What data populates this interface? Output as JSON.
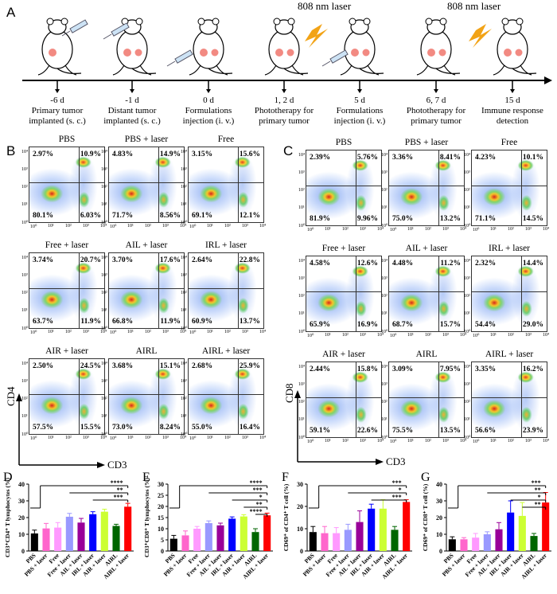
{
  "panelA": {
    "letter": "A",
    "laser_label": "808 nm laser",
    "timeline": [
      {
        "day": "-6 d",
        "l1": "Primary tumor",
        "l2": "implanted (s. c.)"
      },
      {
        "day": "-1 d",
        "l1": "Distant tumor",
        "l2": "implanted (s. c.)"
      },
      {
        "day": "0 d",
        "l1": "Formulations",
        "l2": "injection (i. v.)"
      },
      {
        "day": "1, 2 d",
        "l1": "Phototherapy for",
        "l2": "primary tumor"
      },
      {
        "day": "5 d",
        "l1": "Formulations",
        "l2": "injection (i. v.)"
      },
      {
        "day": "6, 7 d",
        "l1": "Phototherapy for",
        "l2": "primary tumor"
      },
      {
        "day": "15 d",
        "l1": "Immune response",
        "l2": "detection"
      }
    ]
  },
  "panelB": {
    "letter": "B",
    "x_axis": "CD3",
    "y_axis": "CD4",
    "plots": [
      {
        "title": "PBS",
        "ul": "2.97%",
        "ur": "10.9%",
        "ll": "80.1%",
        "lr": "6.03%"
      },
      {
        "title": "PBS + laser",
        "ul": "4.83%",
        "ur": "14.9%",
        "ll": "71.7%",
        "lr": "8.56%"
      },
      {
        "title": "Free",
        "ul": "3.15%",
        "ur": "15.6%",
        "ll": "69.1%",
        "lr": "12.1%"
      },
      {
        "title": "Free + laser",
        "ul": "3.74%",
        "ur": "20.7%",
        "ll": "63.7%",
        "lr": "11.9%"
      },
      {
        "title": "AIL + laser",
        "ul": "3.70%",
        "ur": "17.6%",
        "ll": "66.8%",
        "lr": "11.9%"
      },
      {
        "title": "IRL + laser",
        "ul": "2.64%",
        "ur": "22.8%",
        "ll": "60.9%",
        "lr": "13.7%"
      },
      {
        "title": "AIR + laser",
        "ul": "2.50%",
        "ur": "24.5%",
        "ll": "57.5%",
        "lr": "15.5%"
      },
      {
        "title": "AIRL",
        "ul": "3.68%",
        "ur": "15.1%",
        "ll": "73.0%",
        "lr": "8.24%"
      },
      {
        "title": "AIRL + laser",
        "ul": "2.68%",
        "ur": "25.9%",
        "ll": "55.0%",
        "lr": "16.4%"
      }
    ]
  },
  "panelC": {
    "letter": "C",
    "x_axis": "CD3",
    "y_axis": "CD8",
    "plots": [
      {
        "title": "PBS",
        "ul": "2.39%",
        "ur": "5.76%",
        "ll": "81.9%",
        "lr": "9.96%"
      },
      {
        "title": "PBS + laser",
        "ul": "3.36%",
        "ur": "8.41%",
        "ll": "75.0%",
        "lr": "13.2%"
      },
      {
        "title": "Free",
        "ul": "4.23%",
        "ur": "10.1%",
        "ll": "71.1%",
        "lr": "14.5%"
      },
      {
        "title": "Free + laser",
        "ul": "4.58%",
        "ur": "12.6%",
        "ll": "65.9%",
        "lr": "16.9%"
      },
      {
        "title": "AIL + laser",
        "ul": "4.48%",
        "ur": "11.2%",
        "ll": "68.7%",
        "lr": "15.7%"
      },
      {
        "title": "IRL + laser",
        "ul": "2.32%",
        "ur": "14.4%",
        "ll": "54.4%",
        "lr": "29.0%"
      },
      {
        "title": "AIR + laser",
        "ul": "2.44%",
        "ur": "15.8%",
        "ll": "59.1%",
        "lr": "22.6%"
      },
      {
        "title": "AIRL",
        "ul": "3.09%",
        "ur": "7.95%",
        "ll": "75.5%",
        "lr": "13.5%"
      },
      {
        "title": "AIRL + laser",
        "ul": "3.35%",
        "ur": "16.2%",
        "ll": "56.6%",
        "lr": "23.9%"
      }
    ]
  },
  "tick_labels": [
    "10⁰",
    "10¹",
    "10²",
    "10³",
    "10⁴"
  ],
  "chart_data": [
    {
      "id": "D",
      "type": "bar",
      "title": "",
      "ylabel": "CD3⁺CD4⁺ T lymphocytes (%)",
      "ylim": [
        0,
        40
      ],
      "yticks": [
        0,
        10,
        20,
        30,
        40
      ],
      "categories": [
        "PBS",
        "PBS + laser",
        "Free",
        "Free + laser",
        "AIL + laser",
        "IRL + laser",
        "AIR + laser",
        "AIRL",
        "AIRL + laser"
      ],
      "values": [
        10.5,
        13.5,
        14,
        20.5,
        17,
        22,
        23.5,
        15,
        26.5
      ],
      "errors": [
        2,
        3,
        3,
        2,
        2.5,
        1.5,
        1.5,
        1,
        2
      ],
      "colors": [
        "#000000",
        "#ff66cc",
        "#ff99ff",
        "#9999ff",
        "#990099",
        "#0000ff",
        "#ccff33",
        "#006600",
        "#ff0000"
      ],
      "sig": [
        "****",
        "**",
        "***"
      ]
    },
    {
      "id": "E",
      "type": "bar",
      "ylabel": "CD3⁺CD8⁺ T lymphocytes (%)",
      "ylim": [
        0,
        30
      ],
      "yticks": [
        0,
        5,
        10,
        15,
        20,
        25,
        30
      ],
      "categories": [
        "PBS",
        "PBS + laser",
        "Free",
        "Free + laser",
        "AIL + laser",
        "IRL + laser",
        "AIR + laser",
        "AIRL",
        "AIRL + laser"
      ],
      "values": [
        5.5,
        7,
        10,
        12.5,
        11.5,
        14.5,
        15.5,
        8.5,
        16
      ],
      "errors": [
        1.5,
        2,
        1,
        1,
        1,
        0.8,
        0.8,
        1.5,
        1
      ],
      "colors": [
        "#000000",
        "#ff66cc",
        "#ff99ff",
        "#9999ff",
        "#990099",
        "#0000ff",
        "#ccff33",
        "#006600",
        "#ff0000"
      ],
      "sig": [
        "****",
        "***",
        "*",
        "**",
        "****"
      ]
    },
    {
      "id": "F",
      "type": "bar",
      "ylabel": "CD69⁺ of CD4⁺ T cell (%)",
      "ylim": [
        0,
        30
      ],
      "yticks": [
        0,
        10,
        20,
        30
      ],
      "categories": [
        "PBS",
        "PBS + laser",
        "Free",
        "Free + laser",
        "AIL + laser",
        "IRL + laser",
        "AIR + laser",
        "AIRL",
        "AIRL + laser"
      ],
      "values": [
        8.5,
        8,
        8,
        9.5,
        13,
        19,
        19,
        9.5,
        22
      ],
      "errors": [
        2.5,
        3,
        2.5,
        2.5,
        5,
        2,
        4,
        1.5,
        1
      ],
      "colors": [
        "#000000",
        "#ff66cc",
        "#ff99ff",
        "#9999ff",
        "#990099",
        "#0000ff",
        "#ccff33",
        "#006600",
        "#ff0000"
      ],
      "sig": [
        "***",
        "*",
        "***"
      ]
    },
    {
      "id": "G",
      "type": "bar",
      "ylabel": "CD69⁺ of CD8⁺ T cell (%)",
      "ylim": [
        0,
        40
      ],
      "yticks": [
        0,
        10,
        20,
        30,
        40
      ],
      "categories": [
        "PBS",
        "PBS + laser",
        "Free",
        "Free + laser",
        "AIL + laser",
        "IRL + laser",
        "AIR + laser",
        "AIRL",
        "AIRL + laser"
      ],
      "values": [
        7,
        7,
        8,
        10,
        13,
        23,
        21,
        9,
        29
      ],
      "errors": [
        1.5,
        1,
        2.5,
        1.5,
        4,
        7,
        8,
        1.5,
        6
      ],
      "colors": [
        "#000000",
        "#ff66cc",
        "#ff99ff",
        "#9999ff",
        "#990099",
        "#0000ff",
        "#ccff33",
        "#006600",
        "#ff0000"
      ],
      "sig": [
        "***",
        "**",
        "*",
        "**"
      ]
    }
  ]
}
